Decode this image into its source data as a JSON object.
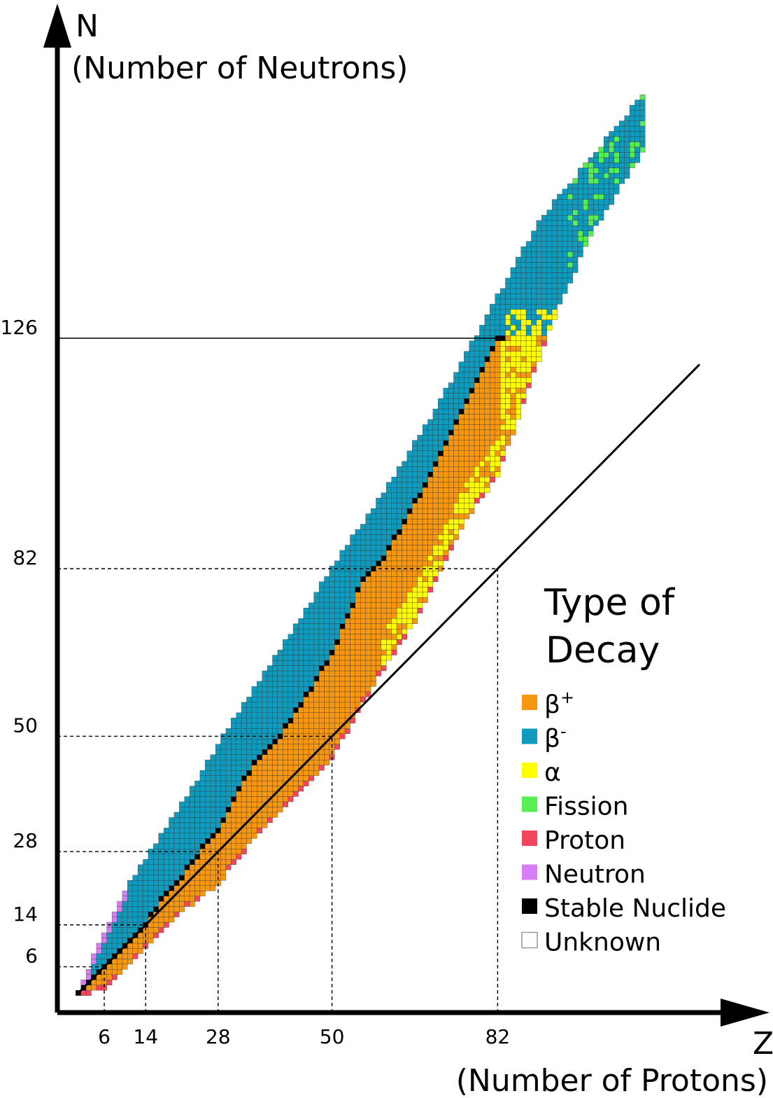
{
  "chart_data": {
    "type": "heatmap",
    "x_axis": {
      "letter": "Z",
      "label": "(Number of Protons)",
      "ticks": [
        6,
        14,
        28,
        50,
        82
      ]
    },
    "y_axis": {
      "letter": "N",
      "label": "(Number of Neutrons)",
      "ticks": [
        6,
        14,
        28,
        50,
        82,
        126
      ]
    },
    "magic_numbers": [
      6,
      14,
      28,
      50,
      82,
      126
    ],
    "reference_line": "N = Z",
    "legend": {
      "title_line1": "Type of",
      "title_line2": "Decay",
      "items": [
        {
          "key": "beta_plus",
          "symbol": "β",
          "sup": "+",
          "color": "#f7960f"
        },
        {
          "key": "beta_minus",
          "symbol": "β",
          "sup": "-",
          "color": "#0f9bbd"
        },
        {
          "key": "alpha",
          "symbol": "α",
          "sup": "",
          "color": "#ffff00"
        },
        {
          "key": "fission",
          "symbol": "Fission",
          "sup": "",
          "color": "#55ef52"
        },
        {
          "key": "proton",
          "symbol": "Proton",
          "sup": "",
          "color": "#f2465c"
        },
        {
          "key": "neutron",
          "symbol": "Neutron",
          "sup": "",
          "color": "#d77ef7"
        },
        {
          "key": "stable",
          "symbol": "Stable Nuclide",
          "sup": "",
          "color": "#000000"
        },
        {
          "key": "unknown",
          "symbol": "Unknown",
          "sup": "",
          "color": "#ffffff"
        }
      ]
    },
    "valley_of_stability": [
      [
        1,
        1
      ],
      [
        6,
        6
      ],
      [
        8,
        8
      ],
      [
        12,
        12
      ],
      [
        14,
        14
      ],
      [
        18,
        20
      ],
      [
        20,
        22
      ],
      [
        26,
        30
      ],
      [
        28,
        32
      ],
      [
        32,
        40
      ],
      [
        36,
        46
      ],
      [
        40,
        50
      ],
      [
        44,
        56
      ],
      [
        50,
        66
      ],
      [
        56,
        80
      ],
      [
        60,
        84
      ],
      [
        68,
        98
      ],
      [
        76,
        114
      ],
      [
        82,
        126
      ]
    ],
    "neutron_rich_edge": [
      [
        1,
        1
      ],
      [
        6,
        12
      ],
      [
        10,
        20
      ],
      [
        14,
        26
      ],
      [
        18,
        32
      ],
      [
        22,
        38
      ],
      [
        28,
        48
      ],
      [
        36,
        60
      ],
      [
        44,
        72
      ],
      [
        50,
        82
      ],
      [
        60,
        96
      ],
      [
        70,
        112
      ],
      [
        80,
        130
      ],
      [
        90,
        148
      ],
      [
        100,
        160
      ],
      [
        110,
        172
      ]
    ],
    "proton_rich_edge": [
      [
        1,
        1
      ],
      [
        6,
        2
      ],
      [
        10,
        6
      ],
      [
        14,
        10
      ],
      [
        20,
        16
      ],
      [
        28,
        22
      ],
      [
        36,
        32
      ],
      [
        44,
        40
      ],
      [
        50,
        46
      ],
      [
        58,
        60
      ],
      [
        66,
        72
      ],
      [
        76,
        92
      ],
      [
        82,
        100
      ],
      [
        92,
        128
      ],
      [
        100,
        146
      ],
      [
        110,
        162
      ]
    ],
    "alpha_region_from_z": 60,
    "fission_region_from_z": 96
  }
}
